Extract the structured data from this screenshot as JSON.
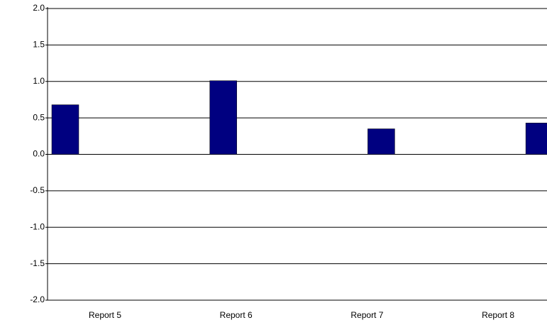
{
  "chart_data": {
    "type": "bar",
    "categories": [
      "Report 5",
      "Report 6",
      "Report 7",
      "Report 8"
    ],
    "values": [
      0.68,
      1.01,
      0.35,
      0.43
    ],
    "color": "#000080",
    "ylim": [
      -2,
      2
    ],
    "yticks": [
      {
        "value": 2,
        "label": "2.0"
      },
      1.5,
      {
        "value": 1,
        "label": "1.0"
      },
      0.5,
      {
        "value": 0,
        "label": "0.0"
      },
      -0.5,
      {
        "value": -1,
        "label": "-1.0"
      },
      -1.5,
      {
        "value": -2,
        "label": "-2.0"
      }
    ],
    "grid": true
  }
}
